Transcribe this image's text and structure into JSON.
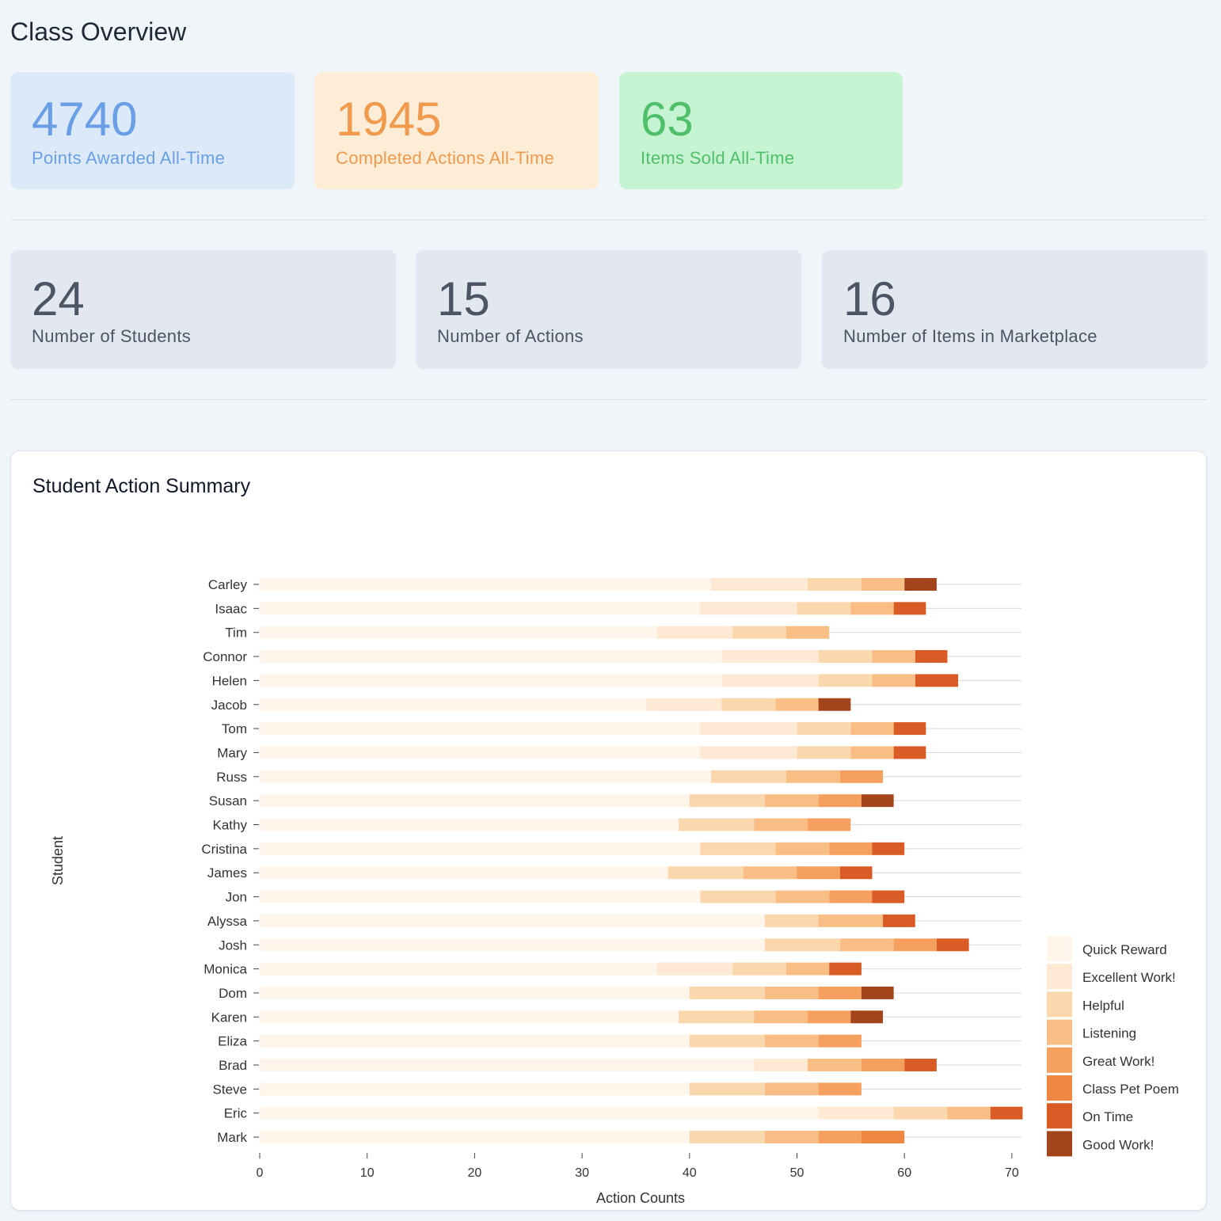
{
  "page": {
    "title": "Class Overview"
  },
  "top_stats": [
    {
      "value": "4740",
      "label": "Points Awarded All-Time",
      "color": "#6a9fe6"
    },
    {
      "value": "1945",
      "label": "Completed Actions All-Time",
      "color": "#f09a4e"
    },
    {
      "value": "63",
      "label": "Items Sold All-Time",
      "color": "#4fbf6a"
    }
  ],
  "class_stats": [
    {
      "value": "24",
      "label": "Number of Students"
    },
    {
      "value": "15",
      "label": "Number of Actions"
    },
    {
      "value": "16",
      "label": "Number of Items in Marketplace"
    }
  ],
  "chart_card": {
    "title": "Student Action Summary"
  },
  "chart_data": {
    "type": "bar",
    "orientation": "horizontal",
    "stacked": true,
    "title": "Student Action Summary",
    "xlabel": "Action Counts",
    "ylabel": "Student",
    "xlim": [
      0,
      71
    ],
    "xticks": [
      0,
      10,
      20,
      30,
      40,
      50,
      60,
      70
    ],
    "legend_position": "right-bottom",
    "categories": [
      "Carley",
      "Isaac",
      "Tim",
      "Connor",
      "Helen",
      "Jacob",
      "Tom",
      "Mary",
      "Russ",
      "Susan",
      "Kathy",
      "Cristina",
      "James",
      "Jon",
      "Alyssa",
      "Josh",
      "Monica",
      "Dom",
      "Karen",
      "Eliza",
      "Brad",
      "Steve",
      "Eric",
      "Mark"
    ],
    "series": [
      {
        "name": "Quick Reward",
        "color": "#fff5eb",
        "values": [
          42,
          41,
          37,
          43,
          43,
          36,
          41,
          41,
          42,
          40,
          39,
          41,
          38,
          41,
          47,
          47,
          37,
          40,
          39,
          40,
          46,
          40,
          52,
          40
        ]
      },
      {
        "name": "Excellent Work!",
        "color": "#fde9d4",
        "values": [
          9,
          9,
          7,
          9,
          9,
          7,
          9,
          9,
          0,
          0,
          0,
          0,
          0,
          0,
          0,
          0,
          7,
          0,
          0,
          0,
          5,
          0,
          7,
          0
        ]
      },
      {
        "name": "Helpful",
        "color": "#fbd7ad",
        "values": [
          5,
          5,
          5,
          5,
          5,
          5,
          5,
          5,
          7,
          7,
          7,
          7,
          7,
          7,
          5,
          7,
          5,
          7,
          7,
          7,
          0,
          7,
          5,
          7
        ]
      },
      {
        "name": "Listening",
        "color": "#f8be85",
        "values": [
          4,
          4,
          4,
          4,
          4,
          4,
          4,
          4,
          5,
          5,
          5,
          5,
          5,
          5,
          6,
          5,
          4,
          5,
          5,
          5,
          5,
          5,
          4,
          5
        ]
      },
      {
        "name": "Great Work!",
        "color": "#f5a05f",
        "values": [
          0,
          0,
          0,
          0,
          0,
          0,
          0,
          0,
          4,
          4,
          4,
          4,
          4,
          4,
          0,
          4,
          0,
          4,
          4,
          4,
          4,
          4,
          0,
          4
        ]
      },
      {
        "name": "Class Pet Poem",
        "color": "#ee8741",
        "values": [
          0,
          0,
          0,
          0,
          0,
          0,
          0,
          0,
          0,
          0,
          0,
          0,
          0,
          0,
          0,
          0,
          0,
          0,
          0,
          0,
          0,
          0,
          0,
          4
        ]
      },
      {
        "name": "On Time",
        "color": "#d95b25",
        "values": [
          0,
          3,
          0,
          3,
          4,
          0,
          3,
          3,
          0,
          0,
          0,
          3,
          3,
          3,
          3,
          3,
          3,
          0,
          0,
          0,
          3,
          0,
          3,
          0
        ]
      },
      {
        "name": "Good Work!",
        "color": "#a3441c",
        "values": [
          3,
          0,
          0,
          0,
          0,
          3,
          0,
          0,
          0,
          3,
          0,
          0,
          0,
          0,
          0,
          0,
          0,
          3,
          3,
          0,
          0,
          0,
          0,
          0
        ]
      }
    ]
  }
}
